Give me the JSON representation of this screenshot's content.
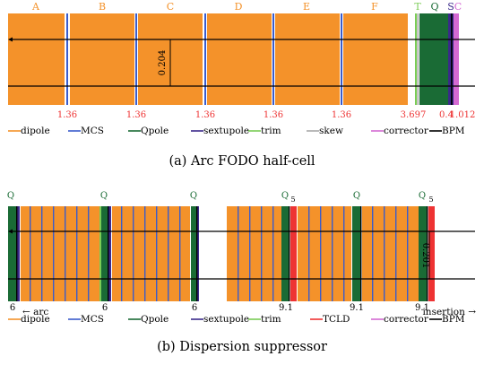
{
  "colors": {
    "dipole": "#f4922a",
    "mcs": "#3a5ccc",
    "qpole": "#1a6b35",
    "sextupole": "#3b2a8a",
    "trim": "#7acc55",
    "skew": "#a8a8a8",
    "corrector": "#d46ad2",
    "tcld": "#ee3333",
    "bpm": "#000000",
    "label_letters": "#f4922a",
    "label_q": "#1a6b35",
    "label_s": "#3b2a8a",
    "label_c": "#d46ad2",
    "label_t": "#7acc55",
    "label_numbers": "#ee3333"
  },
  "panel_a": {
    "caption": "(a)  Arc FODO half-cell",
    "top_labels": [
      "A",
      "B",
      "C",
      "D",
      "E",
      "F",
      "T",
      "Q",
      "S",
      "C"
    ],
    "gap_labels": [
      "1.36",
      "1.36",
      "1.36",
      "1.36",
      "1.36",
      "3.697",
      "0.4",
      "1.012"
    ],
    "dimension_label": "0.204",
    "legend": [
      "dipole",
      "MCS",
      "Qpole",
      "sextupole",
      "trim",
      "skew",
      "corrector",
      "BPM"
    ]
  },
  "panel_b": {
    "caption": "(b)  Dispersion suppressor",
    "top_labels": [
      "Q",
      "Q",
      "Q",
      "Q",
      "5",
      "Q",
      "Q",
      "5"
    ],
    "bottom_numbers": [
      "6",
      "6",
      "6",
      "9.1",
      "9.1",
      "9.1"
    ],
    "dimension_label": "0.201",
    "arc_label": "← arc",
    "insertion_label": "insertion →",
    "legend": [
      "dipole",
      "MCS",
      "Qpole",
      "sextupole",
      "trim",
      "TCLD",
      "corrector",
      "BPM"
    ]
  }
}
